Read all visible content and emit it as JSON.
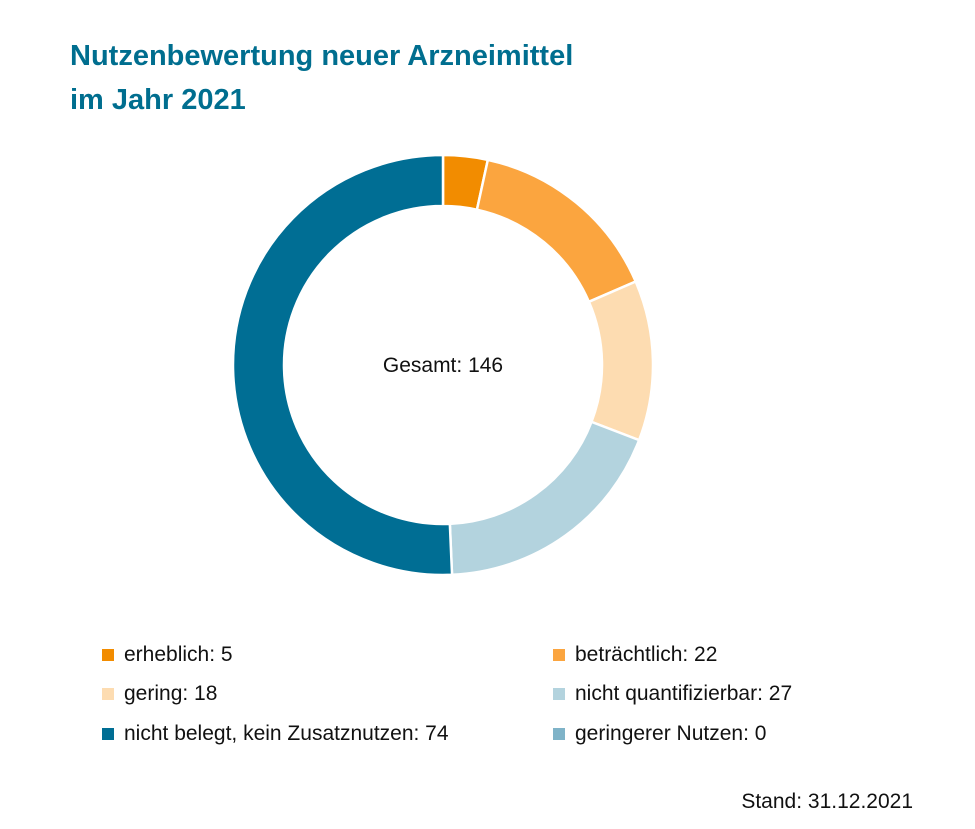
{
  "title": [
    "Nutzenbewertung neuer Arzneimittel",
    "im Jahr 2021"
  ],
  "center_label": "Gesamt: 146",
  "footer": "Stand: 31.12.2021",
  "chart_data": {
    "type": "pie",
    "donut": true,
    "title": "Nutzenbewertung neuer Arzneimittel im Jahr 2021",
    "total": 146,
    "legend_position": "bottom",
    "slices": [
      {
        "label": "erheblich",
        "value": 5,
        "color": "#f28c00",
        "legend": "erheblich: 5"
      },
      {
        "label": "beträchtlich",
        "value": 22,
        "color": "#fba53f",
        "legend": "beträchtlich: 22"
      },
      {
        "label": "gering",
        "value": 18,
        "color": "#fddcb1",
        "legend": "gering: 18"
      },
      {
        "label": "nicht quantifizierbar",
        "value": 27,
        "color": "#b3d3de",
        "legend": "nicht quantifizierbar: 27"
      },
      {
        "label": "nicht belegt, kein Zusatznutzen",
        "value": 74,
        "color": "#006e94",
        "legend": "nicht belegt, kein Zusatznutzen: 74"
      },
      {
        "label": "geringerer Nutzen",
        "value": 0,
        "color": "#7fb3c8",
        "legend": "geringerer Nutzen: 0"
      }
    ]
  }
}
